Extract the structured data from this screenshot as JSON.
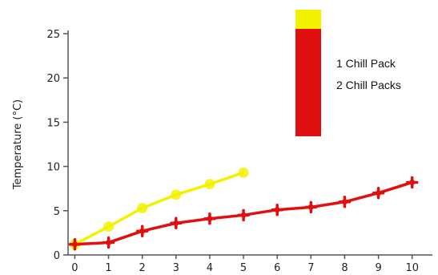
{
  "chart_data": {
    "type": "line",
    "title": "",
    "xlabel": "",
    "ylabel": "Temperature (°C)",
    "x": [
      0,
      1,
      2,
      3,
      4,
      5,
      6,
      7,
      8,
      9,
      10
    ],
    "xlim": [
      -0.2,
      10.6
    ],
    "ylim": [
      0,
      25
    ],
    "yticks": [
      0,
      5,
      10,
      15,
      20,
      25
    ],
    "xticks": [
      0,
      1,
      2,
      3,
      4,
      5,
      6,
      7,
      8,
      9,
      10
    ],
    "grid": false,
    "legend": "top-right",
    "series": [
      {
        "name": "1 Chill Pack",
        "color": "#f2f200",
        "x": [
          0,
          1,
          2,
          3,
          4,
          5
        ],
        "values": [
          1.2,
          3.2,
          5.3,
          6.8,
          8.0,
          9.3
        ]
      },
      {
        "name": "2 Chill Packs",
        "color": "#e01010",
        "x": [
          0,
          1,
          2,
          3,
          4,
          5,
          6,
          7,
          8,
          9,
          10
        ],
        "values": [
          1.2,
          1.4,
          2.7,
          3.6,
          4.1,
          4.5,
          5.1,
          5.4,
          6.0,
          7.0,
          8.2
        ]
      }
    ]
  }
}
